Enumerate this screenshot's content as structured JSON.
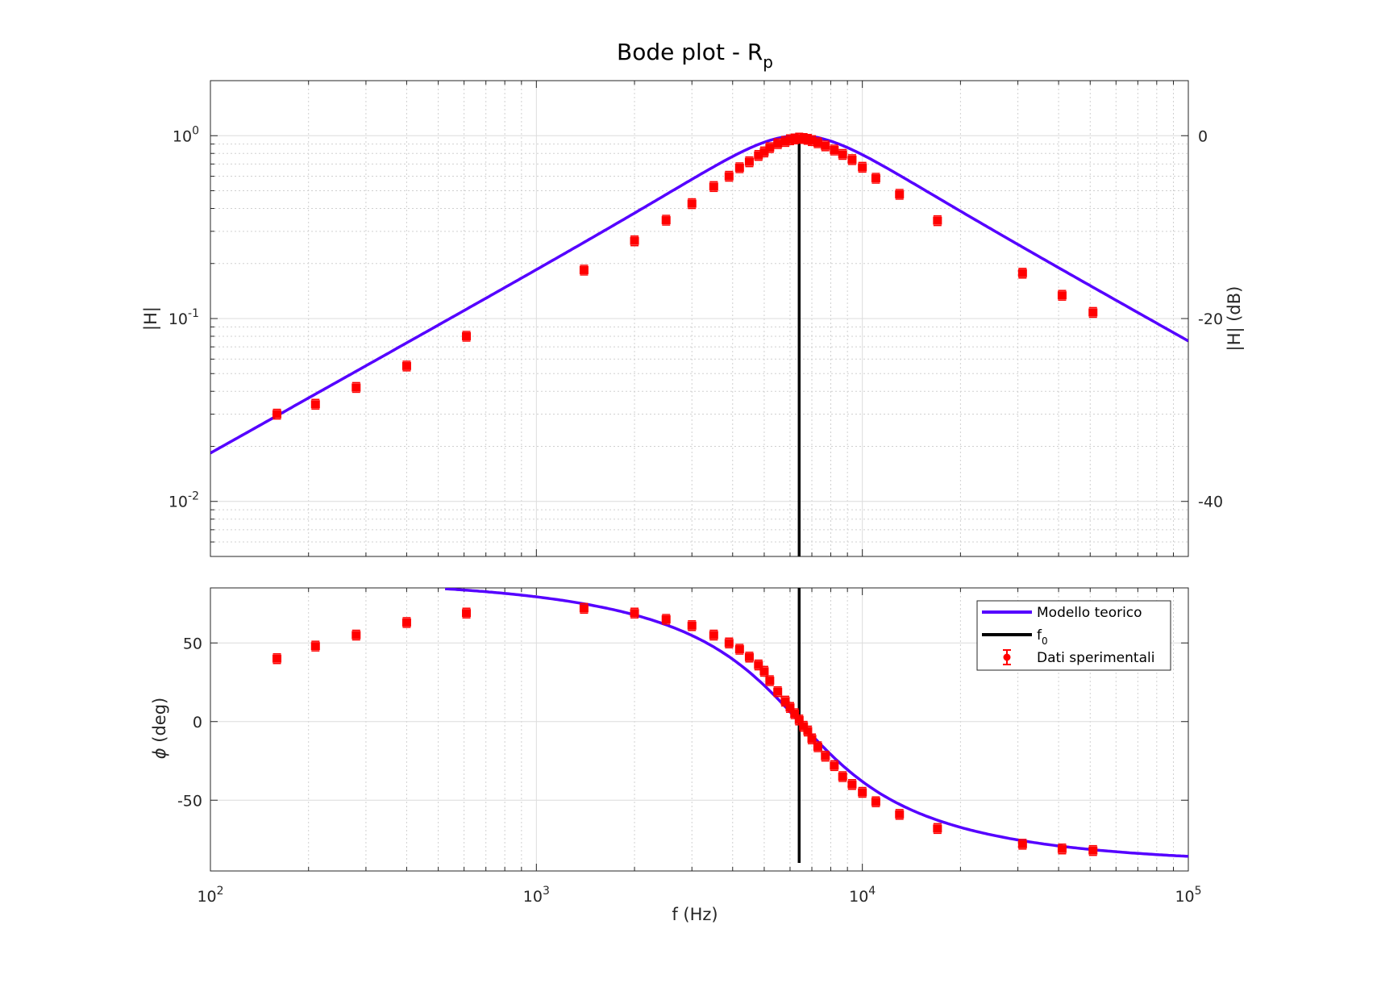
{
  "figure": {
    "title": "Bode plot - R",
    "title_subscript": "p",
    "xlabel": "f (Hz)"
  },
  "chart_data": [
    {
      "type": "line",
      "name": "magnitude",
      "xscale": "log",
      "yscale": "log",
      "xlim": [
        100,
        100000
      ],
      "ylim": [
        0.005,
        2
      ],
      "ylabel": "|H|",
      "yticks": [
        0.01,
        0.1,
        1
      ],
      "ytick_labels": [
        {
          "base": "10",
          "exp": "-2"
        },
        {
          "base": "10",
          "exp": "-1"
        },
        {
          "base": "10",
          "exp": "0"
        }
      ],
      "right_ylabel": "|H| (dB)",
      "right_yticks": [
        0,
        -20,
        -40
      ],
      "right_ytick_labels": [
        "0",
        "-20",
        "-40"
      ],
      "grid": true,
      "colors": {
        "model": "#5500ff",
        "data": "#ff0000",
        "f0": "#000000"
      },
      "f0": 6400,
      "model": {
        "f0": 6400,
        "Q": 0.85
      },
      "series": [
        {
          "name": "Dati sperimentali",
          "x": [
            160,
            210,
            280,
            400,
            610,
            1400,
            2000,
            2500,
            3000,
            3500,
            3900,
            4200,
            4500,
            4800,
            5000,
            5200,
            5500,
            5800,
            6000,
            6200,
            6400,
            6600,
            6800,
            7000,
            7300,
            7700,
            8200,
            8700,
            9300,
            10000,
            11000,
            13000,
            17000,
            31000,
            41000,
            51000
          ],
          "y": [
            0.03,
            0.034,
            0.042,
            0.055,
            0.08,
            0.184,
            0.266,
            0.345,
            0.425,
            0.527,
            0.6,
            0.668,
            0.72,
            0.78,
            0.815,
            0.86,
            0.905,
            0.93,
            0.95,
            0.96,
            0.97,
            0.965,
            0.955,
            0.94,
            0.915,
            0.88,
            0.835,
            0.79,
            0.74,
            0.672,
            0.585,
            0.478,
            0.343,
            0.177,
            0.134,
            0.108
          ]
        }
      ]
    },
    {
      "type": "line",
      "name": "phase",
      "xscale": "log",
      "yscale": "linear",
      "xlim": [
        100,
        100000
      ],
      "ylim": [
        -95,
        85
      ],
      "ylabel_symbol": "ϕ",
      "ylabel": " (deg)",
      "yticks": [
        -50,
        0,
        50
      ],
      "ytick_labels": [
        "-50",
        "0",
        "50"
      ],
      "xticks": [
        100,
        1000,
        10000,
        100000
      ],
      "xtick_labels": [
        {
          "base": "10",
          "exp": "2"
        },
        {
          "base": "10",
          "exp": "3"
        },
        {
          "base": "10",
          "exp": "4"
        },
        {
          "base": "10",
          "exp": "5"
        }
      ],
      "grid": true,
      "legend": {
        "placement": "top-right",
        "entries": [
          "Modello teorico",
          "f",
          "Dati sperimentali"
        ],
        "f0_subscript": "0"
      },
      "series": [
        {
          "name": "Dati sperimentali",
          "x": [
            160,
            210,
            280,
            400,
            610,
            1400,
            2000,
            2500,
            3000,
            3500,
            3900,
            4200,
            4500,
            4800,
            5000,
            5200,
            5500,
            5800,
            6000,
            6200,
            6400,
            6600,
            6800,
            7000,
            7300,
            7700,
            8200,
            8700,
            9300,
            10000,
            11000,
            13000,
            17000,
            31000,
            41000,
            51000
          ],
          "y": [
            40,
            48,
            55,
            63,
            69,
            72,
            69,
            65,
            61,
            55,
            50,
            46,
            41,
            36,
            32,
            26,
            19,
            13,
            9,
            5,
            1,
            -3,
            -6,
            -11,
            -16,
            -22,
            -28,
            -35,
            -40,
            -45,
            -51,
            -59,
            -68,
            -78,
            -81,
            -82
          ]
        }
      ]
    }
  ]
}
